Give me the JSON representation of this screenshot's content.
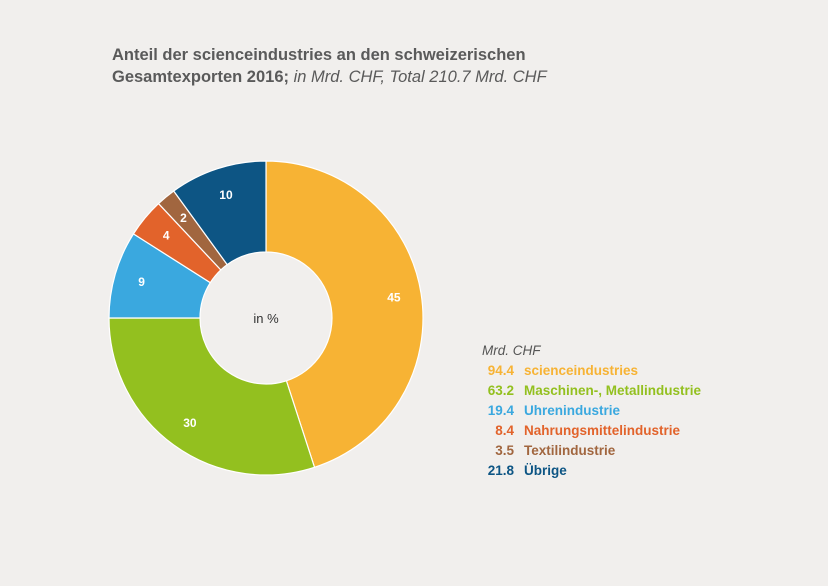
{
  "chart_data": {
    "type": "pie",
    "title": "Anteil der scienceindustries an den schweizerischen",
    "title_line2": "Gesamtexporten 2016;",
    "subtitle": "in Mrd. CHF, Total 210.7 Mrd. CHF",
    "center_label": "in %",
    "legend_header": "Mrd. CHF",
    "legend_placement": "right",
    "slices": [
      {
        "label": "scienceindustries",
        "percent": 45,
        "percent_label": "45",
        "value": 94.4,
        "value_label": "94.4",
        "color": "#f7b334"
      },
      {
        "label": "Maschinen-, Metallindustrie",
        "percent": 30,
        "percent_label": "30",
        "value": 63.2,
        "value_label": "63.2",
        "color": "#93c01f"
      },
      {
        "label": "Uhrenindustrie",
        "percent": 9,
        "percent_label": "9",
        "value": 19.4,
        "value_label": "19.4",
        "color": "#3aa8df"
      },
      {
        "label": "Nahrungsmittelindustrie",
        "percent": 4,
        "percent_label": "4",
        "value": 8.4,
        "value_label": "8.4",
        "color": "#e2632b"
      },
      {
        "label": "Textilindustrie",
        "percent": 2,
        "percent_label": "2",
        "value": 3.5,
        "value_label": "3.5",
        "color": "#a1663f"
      },
      {
        "label": "Übrige",
        "percent": 10,
        "percent_label": "10",
        "value": 21.8,
        "value_label": "21.8",
        "color": "#0d5584"
      }
    ]
  }
}
